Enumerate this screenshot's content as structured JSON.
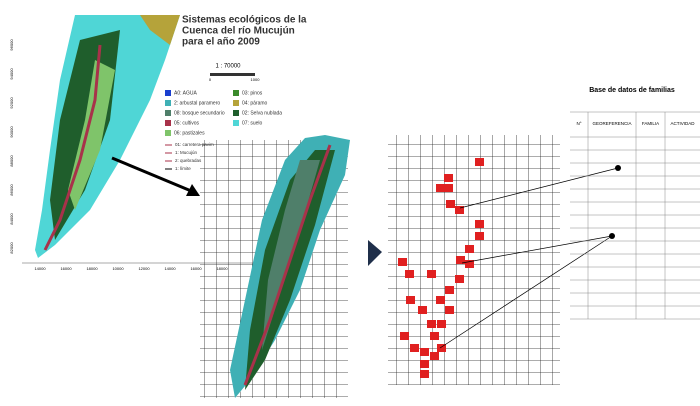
{
  "map": {
    "title_lines": [
      "Sistemas ecológicos de la",
      "Cuenca del río Mucujún",
      "para el año 2009"
    ],
    "scale": "1 : 70000",
    "scale_bar": [
      "0",
      "1000"
    ],
    "y_labels": [
      "96000",
      "94000",
      "92000",
      "90000",
      "88000",
      "86000",
      "84000",
      "82000"
    ],
    "x_labels": [
      "14000",
      "16000",
      "18000",
      "10000",
      "12000",
      "14000",
      "16000",
      "18000"
    ],
    "legend": [
      {
        "label": "A0: AGUA",
        "color": "#1a3fcf"
      },
      {
        "label": "03: pinos",
        "color": "#3a8a2a"
      },
      {
        "label": "2: arbustal paramero",
        "color": "#3fb0b5"
      },
      {
        "label": "04: páramo",
        "color": "#b5a33a"
      },
      {
        "label": "08: bosque secundario",
        "color": "#4f7f6a"
      },
      {
        "label": "02: Selva nublada",
        "color": "#1f5e2c"
      },
      {
        "label": "05: cultivos",
        "color": "#a8324a"
      },
      {
        "label": "07: suelo",
        "color": "#4fd6d6"
      },
      {
        "label": "06: pastizales",
        "color": "#7fc46a"
      }
    ],
    "lines": [
      "01: carretera pavim",
      "1: Mucujún",
      "2: quebradas",
      "1: límite"
    ]
  },
  "table": {
    "title": "Base de datos de familias",
    "headers": [
      "N°",
      "GEOREFERENCIA",
      "FAMILIA",
      "ACTIVIDAD"
    ]
  }
}
